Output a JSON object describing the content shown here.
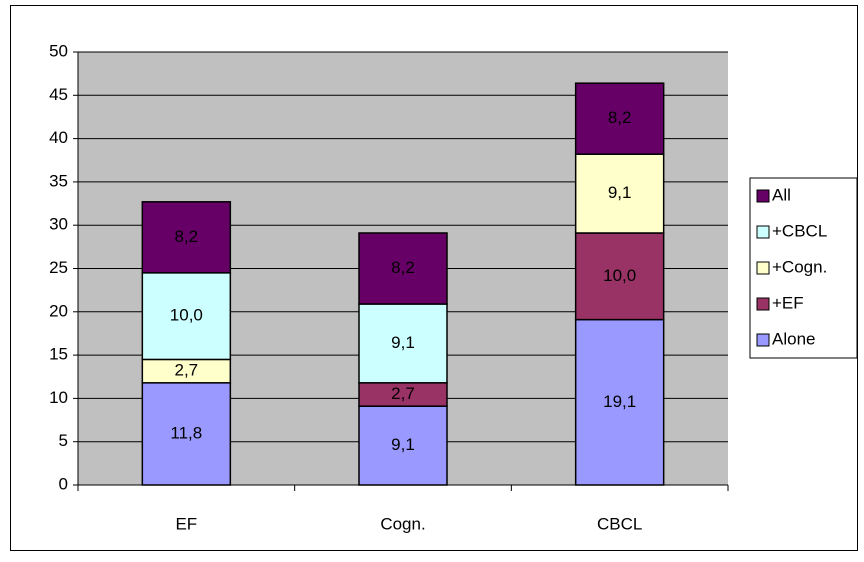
{
  "chart_data": {
    "type": "stacked_bar",
    "categories": [
      "EF",
      "Cogn.",
      "CBCL"
    ],
    "series": [
      {
        "name": "Alone",
        "color": "#9999ff",
        "values": [
          11.8,
          9.1,
          19.1
        ],
        "value_labels": [
          "11,8",
          "9,1",
          "19,1"
        ]
      },
      {
        "name": "+EF",
        "color": "#993366",
        "values": [
          null,
          2.7,
          10.0
        ],
        "value_labels": [
          null,
          "2,7",
          "10,0"
        ]
      },
      {
        "name": "+Cogn.",
        "color": "#ffffcc",
        "values": [
          2.7,
          null,
          9.1
        ],
        "value_labels": [
          "2,7",
          null,
          "9,1"
        ]
      },
      {
        "name": "+CBCL",
        "color": "#ccffff",
        "values": [
          10.0,
          9.1,
          null
        ],
        "value_labels": [
          "10,0",
          "9,1",
          null
        ]
      },
      {
        "name": "All",
        "color": "#660066",
        "values": [
          8.2,
          8.2,
          8.2
        ],
        "value_labels": [
          "8,2",
          "8,2",
          "8,2"
        ]
      }
    ],
    "ylim": [
      0,
      50
    ],
    "yticks": [
      0,
      5,
      10,
      15,
      20,
      25,
      30,
      35,
      40,
      45,
      50
    ],
    "grid": true,
    "legend": "right",
    "plot_background": "#c0c0c0"
  }
}
